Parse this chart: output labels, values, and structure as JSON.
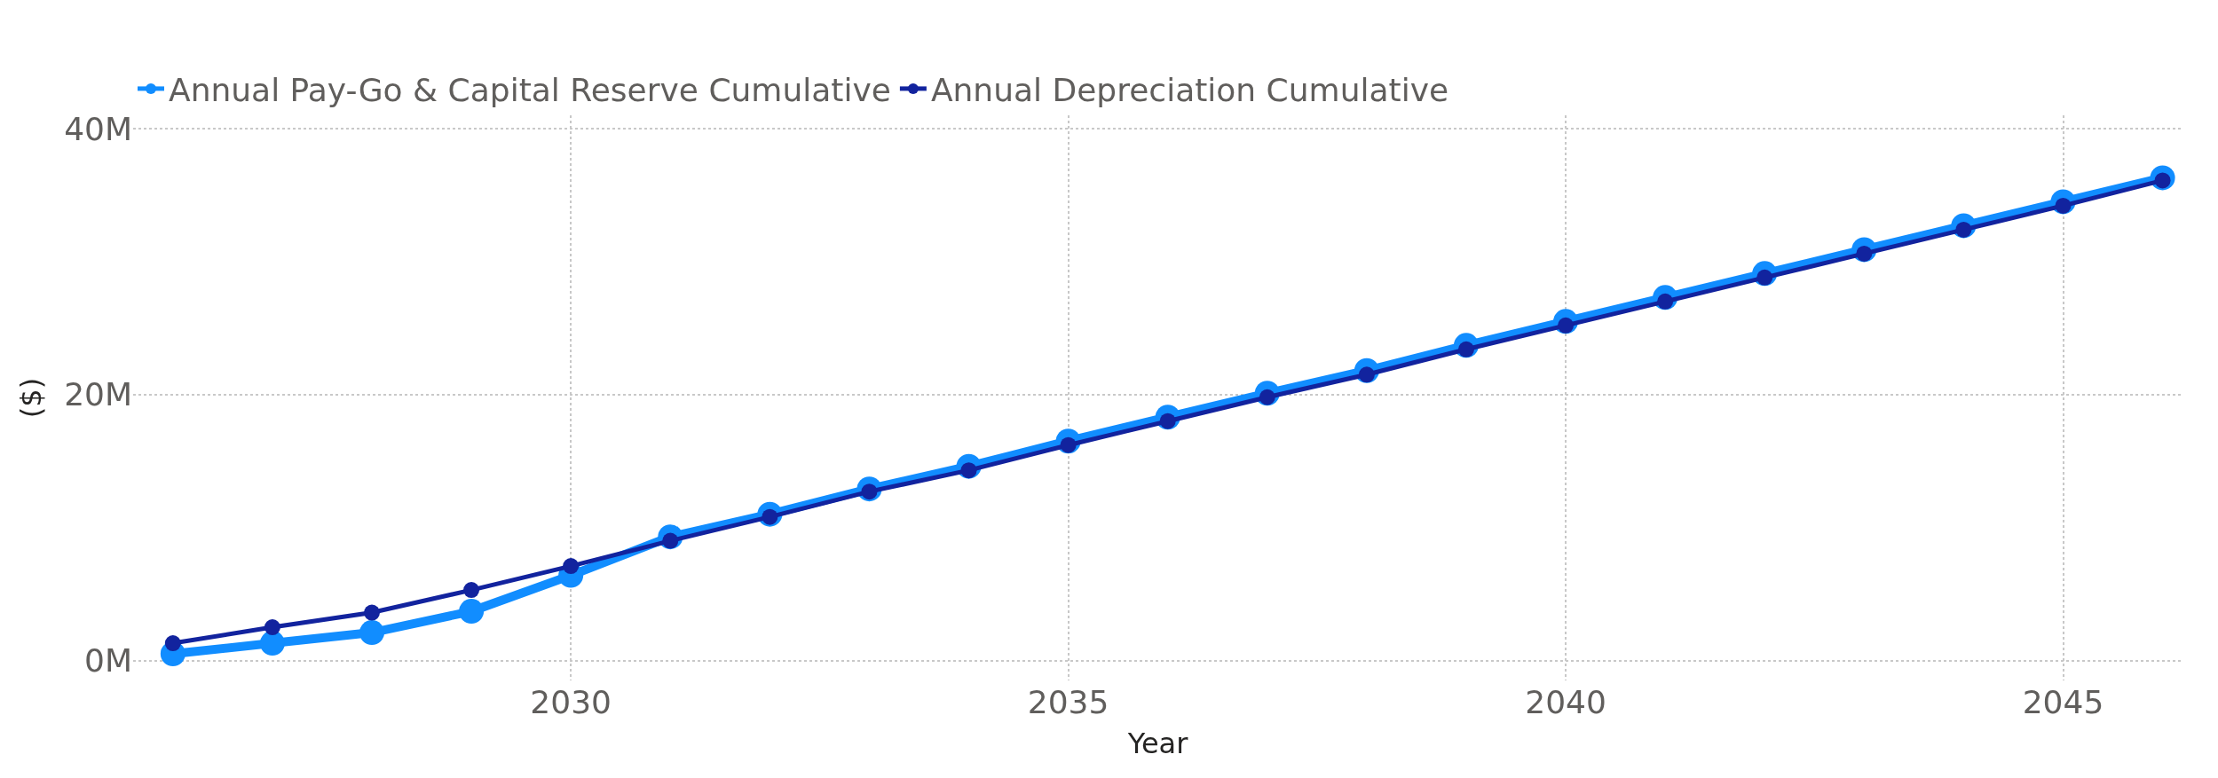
{
  "chart_data": {
    "type": "line",
    "xlabel": "Year",
    "ylabel": "($)",
    "x": [
      2026,
      2027,
      2028,
      2029,
      2030,
      2031,
      2032,
      2033,
      2034,
      2035,
      2036,
      2037,
      2038,
      2039,
      2040,
      2041,
      2042,
      2043,
      2044,
      2045,
      2046
    ],
    "series": [
      {
        "name": "Annual Pay-Go & Capital Reserve Cumulative",
        "color": "#118dff",
        "values": [
          0.5,
          1.3,
          2.1,
          3.7,
          6.4,
          9.3,
          11.0,
          12.9,
          14.6,
          16.5,
          18.3,
          20.1,
          21.8,
          23.7,
          25.5,
          27.3,
          29.1,
          30.9,
          32.7,
          34.5,
          36.3
        ]
      },
      {
        "name": "Annual Depreciation Cumulative",
        "color": "#12239e",
        "values": [
          1.3,
          2.5,
          3.6,
          5.3,
          7.1,
          9.0,
          10.8,
          12.7,
          14.3,
          16.2,
          18.0,
          19.8,
          21.5,
          23.4,
          25.2,
          27.0,
          28.8,
          30.6,
          32.4,
          34.2,
          36.1
        ]
      }
    ],
    "xlim": [
      2025.6,
      2046.2
    ],
    "xticks": [
      2030,
      2035,
      2040,
      2045
    ],
    "ylim": [
      -1.5,
      41
    ],
    "yticks": [
      {
        "value": 0,
        "label": "0M"
      },
      {
        "value": 20,
        "label": "20M"
      },
      {
        "value": 40,
        "label": "40M"
      }
    ],
    "grid": true,
    "legend": "top left",
    "marker": "circle",
    "line_style": "solid"
  }
}
